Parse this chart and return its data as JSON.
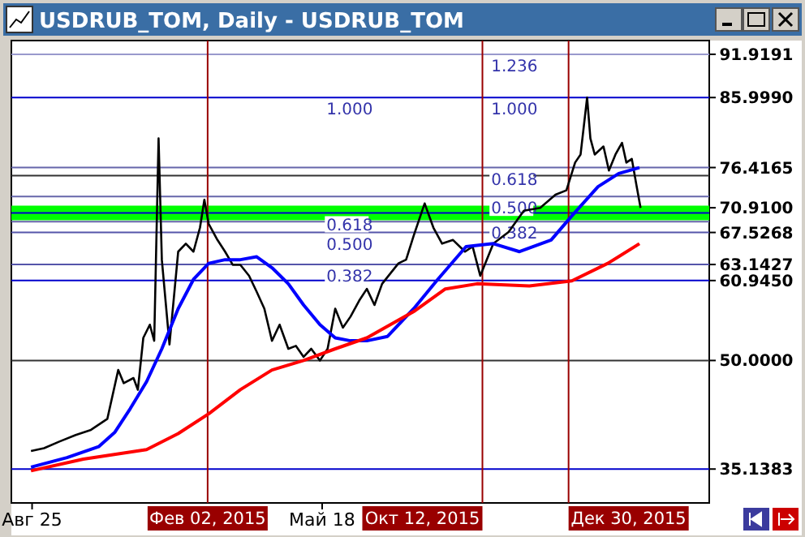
{
  "chart_data": {
    "type": "line",
    "title": "USDRUB_TOM, Daily - USDRUB_TOM",
    "xlim": [
      "2014-08-06",
      "2016-05-07"
    ],
    "ylim": [
      30.5,
      93.8
    ],
    "xticks": [
      {
        "value": "2014-08-25",
        "label": "Авг 25"
      },
      {
        "value": "2015-05-18",
        "label": "Май 18"
      }
    ],
    "yticks": [
      {
        "value": 91.9191,
        "label": "91.9191"
      },
      {
        "value": 85.999,
        "label": "85.9990"
      },
      {
        "value": 76.4165,
        "label": "76.4165"
      },
      {
        "value": 70.91,
        "label": "70.9100"
      },
      {
        "value": 67.5268,
        "label": "67.5268"
      },
      {
        "value": 63.1427,
        "label": "63.1427"
      },
      {
        "value": 60.945,
        "label": "60.9450"
      },
      {
        "value": 50,
        "label": "50.0000"
      },
      {
        "value": 35.1383,
        "label": "35.1383"
      }
    ],
    "series": [
      {
        "color": "#000000",
        "x": [
          "2014-08-24",
          "2014-09-05",
          "2014-09-19",
          "2014-10-04",
          "2014-10-18",
          "2014-11-02",
          "2014-11-12",
          "2014-11-17",
          "2014-11-26",
          "2014-11-30",
          "2014-12-05",
          "2014-12-11",
          "2014-12-15",
          "2014-12-19",
          "2014-12-22",
          "2014-12-29",
          "2015-01-06",
          "2015-01-13",
          "2015-01-20",
          "2015-01-26",
          "2015-01-30",
          "2015-02-03",
          "2015-02-11",
          "2015-02-18",
          "2015-02-25",
          "2015-03-04",
          "2015-03-12",
          "2015-03-19",
          "2015-03-26",
          "2015-04-02",
          "2015-04-09",
          "2015-04-17",
          "2015-04-24",
          "2015-05-01",
          "2015-05-08",
          "2015-05-16",
          "2015-05-23",
          "2015-05-30",
          "2015-06-06",
          "2015-06-13",
          "2015-06-21",
          "2015-06-28",
          "2015-07-05",
          "2015-07-12",
          "2015-07-20",
          "2015-07-27",
          "2015-08-03",
          "2015-08-10",
          "2015-08-20",
          "2015-08-28",
          "2015-09-05",
          "2015-09-15",
          "2015-09-26",
          "2015-10-03",
          "2015-10-10",
          "2015-10-22",
          "2015-11-05",
          "2015-11-19",
          "2015-12-04",
          "2015-12-18",
          "2015-12-28",
          "2016-01-05",
          "2016-01-10",
          "2016-01-16",
          "2016-01-19",
          "2016-01-23",
          "2016-01-31",
          "2016-02-05",
          "2016-02-11",
          "2016-02-17",
          "2016-02-21",
          "2016-02-26",
          "2016-03-01",
          "2016-03-05"
        ],
        "values": [
          37.6,
          38.0,
          38.9,
          39.8,
          40.5,
          42.0,
          48.7,
          46.9,
          47.6,
          46.0,
          53.1,
          54.9,
          52.7,
          80.4,
          63.8,
          52.2,
          64.9,
          66.0,
          64.9,
          68.2,
          72.0,
          68.7,
          66.5,
          64.9,
          63.1,
          63.1,
          61.6,
          59.4,
          57.1,
          52.7,
          54.9,
          51.6,
          52.0,
          50.5,
          51.6,
          50.0,
          51.6,
          57.1,
          54.5,
          56.0,
          58.2,
          59.8,
          57.6,
          60.5,
          62.0,
          63.3,
          63.8,
          67.1,
          71.5,
          68.2,
          66.0,
          66.5,
          64.9,
          65.6,
          61.6,
          66.0,
          67.6,
          70.5,
          70.9,
          72.7,
          73.3,
          77.1,
          78.2,
          86.0,
          80.4,
          78.2,
          79.3,
          76.0,
          78.2,
          79.8,
          77.1,
          77.6,
          74.2,
          70.9
        ]
      },
      {
        "color": "#0000ff",
        "x": [
          "2014-08-24",
          "2014-09-26",
          "2014-10-25",
          "2014-11-09",
          "2014-11-23",
          "2014-12-08",
          "2014-12-22",
          "2015-01-06",
          "2015-01-20",
          "2015-02-03",
          "2015-02-18",
          "2015-03-04",
          "2015-03-19",
          "2015-04-02",
          "2015-04-17",
          "2015-05-01",
          "2015-05-16",
          "2015-05-30",
          "2015-06-13",
          "2015-06-28",
          "2015-07-17",
          "2015-08-10",
          "2015-09-01",
          "2015-09-27",
          "2015-10-22",
          "2015-11-15",
          "2015-12-14",
          "2016-01-02",
          "2016-01-26",
          "2016-02-14",
          "2016-03-04"
        ],
        "values": [
          35.4,
          36.7,
          38.2,
          40.2,
          43.4,
          47.1,
          51.6,
          57.1,
          61.1,
          63.3,
          63.8,
          63.8,
          64.2,
          62.7,
          60.5,
          57.6,
          54.9,
          53.1,
          52.7,
          52.7,
          53.3,
          57.1,
          61.1,
          65.6,
          66.0,
          64.9,
          66.5,
          69.8,
          73.8,
          75.6,
          76.4
        ]
      },
      {
        "color": "#ff0000",
        "x": [
          "2014-08-24",
          "2014-10-11",
          "2014-12-08",
          "2015-01-06",
          "2015-02-03",
          "2015-03-04",
          "2015-04-02",
          "2015-05-01",
          "2015-05-30",
          "2015-06-28",
          "2015-08-10",
          "2015-09-08",
          "2015-10-07",
          "2015-11-24",
          "2016-01-02",
          "2016-02-04",
          "2016-03-04"
        ],
        "values": [
          34.9,
          36.5,
          37.8,
          40.0,
          42.7,
          46.0,
          48.7,
          50.0,
          51.6,
          53.1,
          56.7,
          59.8,
          60.5,
          60.2,
          60.9,
          63.3,
          66.0
        ]
      }
    ],
    "bands": [
      {
        "axis": "y",
        "from": 69.2,
        "to": 71.2,
        "color": "#00ff00"
      }
    ],
    "ref_lines": [
      {
        "axis": "y",
        "value": 91.9191,
        "color": "#9999cc"
      },
      {
        "axis": "y",
        "value": 85.999,
        "color": "#0000cc"
      },
      {
        "axis": "y",
        "value": 76.4165,
        "color": "#6666aa"
      },
      {
        "axis": "y",
        "value": 75.3,
        "color": "#333333"
      },
      {
        "axis": "y",
        "value": 72.4565,
        "color": "#6666aa"
      },
      {
        "axis": "y",
        "value": 70.2,
        "color": "#0000cc"
      },
      {
        "axis": "y",
        "value": 69.0,
        "color": "#6666aa"
      },
      {
        "axis": "y",
        "value": 67.5268,
        "color": "#5555aa"
      },
      {
        "axis": "y",
        "value": 63.1427,
        "color": "#5555aa"
      },
      {
        "axis": "y",
        "value": 60.945,
        "color": "#0000cc"
      },
      {
        "axis": "y",
        "value": 50,
        "color": "#333333"
      },
      {
        "axis": "y",
        "value": 35.1383,
        "color": "#0000cc"
      },
      {
        "axis": "x",
        "value": "2015-02-02",
        "label": "Фев 02, 2015",
        "color": "#990000"
      },
      {
        "axis": "x",
        "value": "2015-10-12",
        "label": "Окт 12, 2015",
        "color": "#990000"
      },
      {
        "axis": "x",
        "value": "2015-12-30",
        "label": "Дек 30, 2015",
        "color": "#990000"
      }
    ],
    "annotations": [
      {
        "text": "1.000",
        "x": "2015-05-16",
        "y": 85.999
      },
      {
        "text": "0.618",
        "x": "2015-05-16",
        "y": 70.2
      },
      {
        "text": "0.500",
        "x": "2015-05-16",
        "y": 67.5268
      },
      {
        "text": "0.382",
        "x": "2015-05-16",
        "y": 63.1427
      },
      {
        "text": "1.236",
        "x": "2015-10-14",
        "y": 91.9191
      },
      {
        "text": "1.000",
        "x": "2015-10-14",
        "y": 85.999
      },
      {
        "text": "0.618",
        "x": "2015-10-14",
        "y": 76.4165
      },
      {
        "text": "0.500",
        "x": "2015-10-14",
        "y": 72.4565
      },
      {
        "text": "0.382",
        "x": "2015-10-14",
        "y": 69.0
      }
    ]
  }
}
